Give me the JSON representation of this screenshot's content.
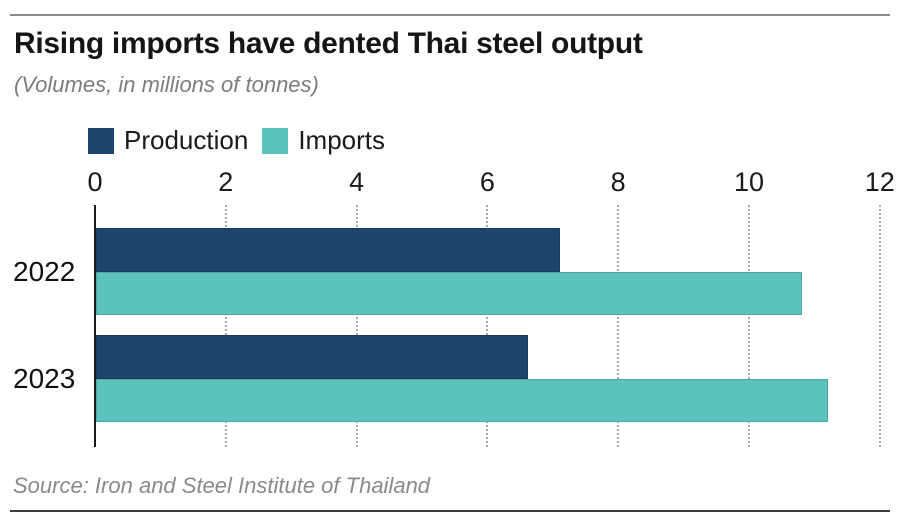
{
  "header": {
    "title": "Rising imports have dented Thai steel output",
    "subtitle": "(Volumes, in millions of tonnes)"
  },
  "legend": {
    "items": [
      {
        "label": "Production",
        "color": "#1e4470"
      },
      {
        "label": "Imports",
        "color": "#5cc2bc"
      }
    ]
  },
  "source": "Source: Iron and Steel Institute of Thailand",
  "chart_data": {
    "type": "bar",
    "orientation": "horizontal",
    "title": "Rising imports have dented Thai steel output",
    "subtitle": "(Volumes, in millions of tonnes)",
    "units": "millions of tonnes",
    "categories": [
      "2022",
      "2023"
    ],
    "series": [
      {
        "name": "Production",
        "color": "#1e4470",
        "values": [
          7.1,
          6.6
        ]
      },
      {
        "name": "Imports",
        "color": "#5cc2bc",
        "values": [
          10.8,
          11.2
        ]
      }
    ],
    "xlabel": "",
    "ylabel": "",
    "xlim": [
      0,
      12
    ],
    "xticks": [
      0,
      2,
      4,
      6,
      8,
      10,
      12
    ],
    "grid": "vertical-dotted",
    "legend_position": "top-left",
    "source": "Source: Iron and Steel Institute of Thailand"
  }
}
